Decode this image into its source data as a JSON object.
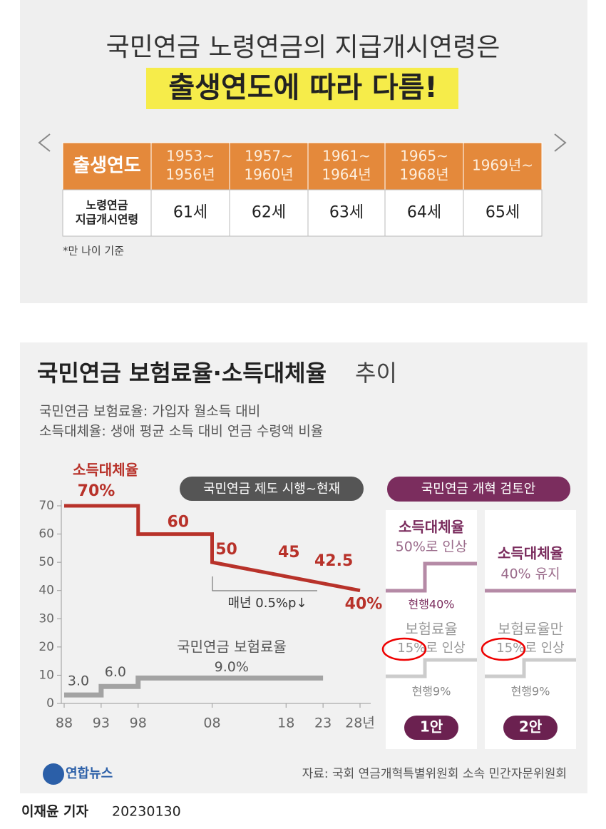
{
  "header": {
    "title": "국민연금 노령연금의 지급개시연령은",
    "highlight": "출생연도에 따라 다름!"
  },
  "table": {
    "header": [
      [
        "출생연도"
      ],
      [
        "1953~",
        "1956년"
      ],
      [
        "1957~",
        "1960년"
      ],
      [
        "1961~",
        "1964년"
      ],
      [
        "1965~",
        "1968년"
      ],
      [
        "1969년~"
      ]
    ],
    "rows": [
      [
        [
          "노령연금",
          "지급개시연령"
        ],
        [
          "61세"
        ],
        [
          "62세"
        ],
        [
          "63세"
        ],
        [
          "64세"
        ],
        [
          "65세"
        ]
      ]
    ]
  },
  "note": "*만 나이 기준",
  "chart_data": {
    "type": "line",
    "title": "국민연금 보험료율·소득대체율",
    "title_suffix": "추이",
    "subtitles": [
      "국민연금 보험료율: 가입자 월소득 대비",
      "소득대체율: 생애 평균 소득 대비 연금 수령액 비율"
    ],
    "annotations": {
      "period": "국민연금 제도 시행~현재",
      "trend": "매년 0.5%p↓"
    },
    "xlim": [
      1988,
      2028
    ],
    "xticks": [
      {
        "value": 1988,
        "label": "88"
      },
      {
        "value": 1993,
        "label": "93"
      },
      {
        "value": 1998,
        "label": "98"
      },
      {
        "value": 2008,
        "label": "08"
      },
      {
        "value": 2018,
        "label": "18"
      },
      {
        "value": 2023,
        "label": "23"
      },
      {
        "value": 2028,
        "label": "28년"
      }
    ],
    "ylim": [
      0,
      70
    ],
    "yticks": [
      0,
      10,
      20,
      30,
      40,
      50,
      60,
      70
    ],
    "series": [
      {
        "name": "소득대체율",
        "color": "#b8322a",
        "x": [
          1988,
          1998,
          1998,
          2008,
          2008,
          2018,
          2023,
          2028
        ],
        "values": [
          70,
          70,
          60,
          60,
          50,
          45,
          42.5,
          40
        ],
        "value_labels": [
          "70%",
          null,
          "60",
          null,
          "50",
          "45",
          "42.5",
          "40%"
        ]
      },
      {
        "name": "국민연금 보험료율",
        "color": "#a3a3a3",
        "x": [
          1988,
          1993,
          1993,
          1998,
          1998,
          2023
        ],
        "values": [
          3,
          3,
          6,
          6,
          9,
          9
        ],
        "value_labels": [
          "3.0",
          null,
          "6.0",
          null,
          "9.0%",
          null
        ]
      }
    ]
  },
  "proposals": {
    "header": "국민연금 개혁 검토안",
    "items": [
      {
        "title": "소득대체율",
        "change": "50%로 인상",
        "current": "현행40%",
        "title2": "보험료율",
        "change2": "15%로 인상",
        "current2": "현행9%",
        "label": "1안"
      },
      {
        "title": "소득대체율",
        "change": "40% 유지",
        "title2": "보험료율만",
        "change2": "15%로 인상",
        "current2": "현행9%",
        "label": "2안"
      }
    ]
  },
  "source": "자료: 국회 연금개혁특별위원회 소속 민간자문위원회",
  "logo": "연합뉴스",
  "byline": "이재윤 기자",
  "date": "20230130"
}
